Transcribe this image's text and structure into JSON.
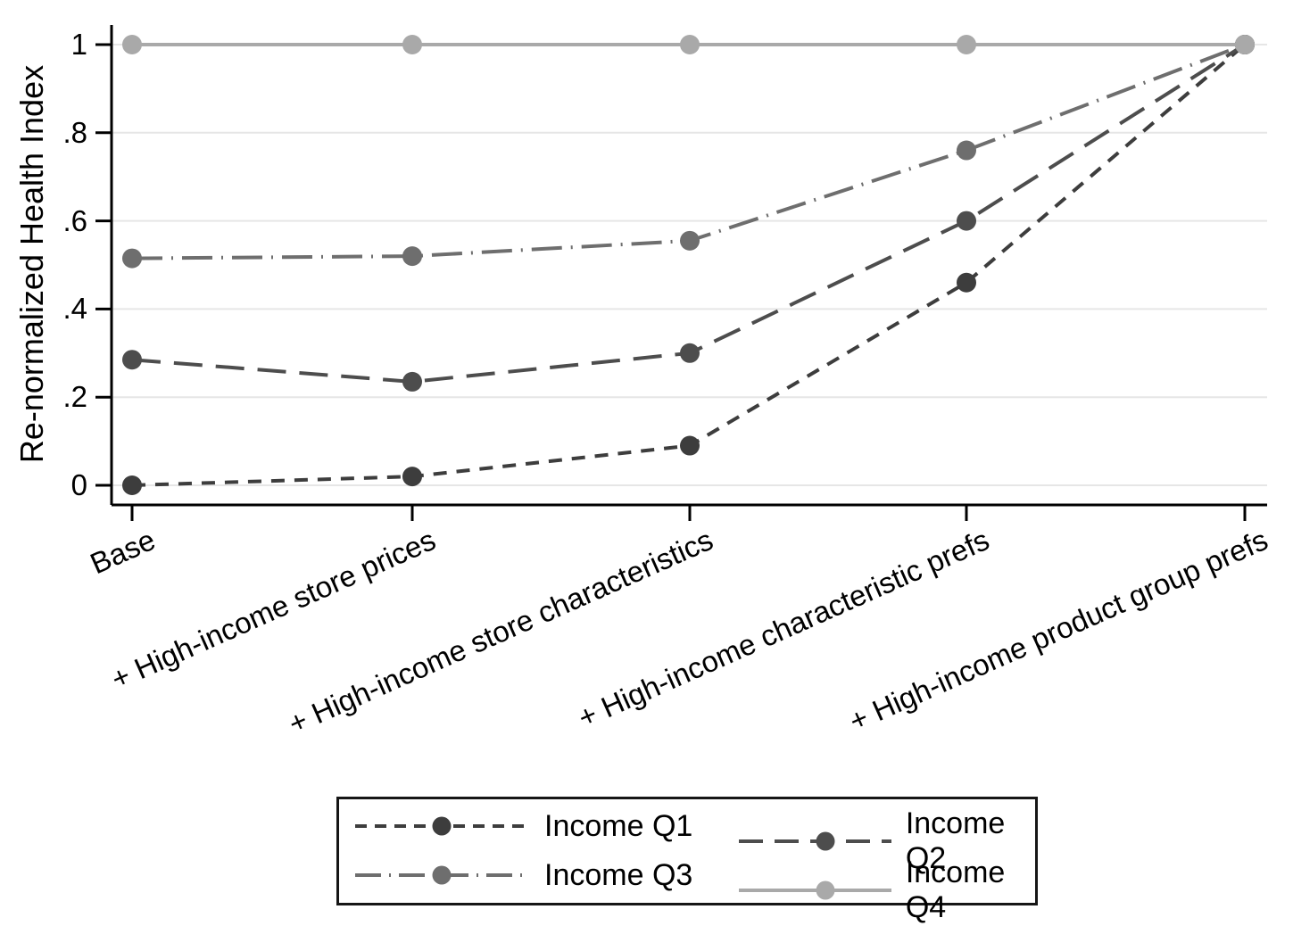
{
  "chart_data": {
    "type": "line",
    "title": "",
    "xlabel": "",
    "ylabel": "Re-normalized Health Index",
    "categories": [
      "Base",
      "+ High-income store prices",
      "+ High-income store characteristics",
      "+ High-income characteristic prefs",
      "+ High-income product group prefs"
    ],
    "series": [
      {
        "name": "Income Q1",
        "values": [
          0.0,
          0.02,
          0.09,
          0.46,
          1.0
        ],
        "color": "#3d3d3d",
        "dash": "short-dash"
      },
      {
        "name": "Income Q2",
        "values": [
          0.285,
          0.235,
          0.3,
          0.6,
          1.0
        ],
        "color": "#4d4d4d",
        "dash": "long-dash"
      },
      {
        "name": "Income Q3",
        "values": [
          0.515,
          0.52,
          0.555,
          0.76,
          1.0
        ],
        "color": "#6e6e6e",
        "dash": "dash-dot"
      },
      {
        "name": "Income Q4",
        "values": [
          1.0,
          1.0,
          1.0,
          1.0,
          1.0
        ],
        "color": "#a9a9a9",
        "dash": "solid"
      }
    ],
    "ylim": [
      0,
      1
    ],
    "ytick_values": [
      0,
      0.2,
      0.4,
      0.6,
      0.8,
      1
    ],
    "ytick_labels": [
      "0",
      ".2",
      ".4",
      ".6",
      ".8",
      "1"
    ],
    "grid": true,
    "legend_position": "bottom",
    "colors": {
      "axis": "#000000",
      "gridline": "#e6e6e6",
      "background": "#ffffff",
      "legend_border": "#161616"
    }
  }
}
